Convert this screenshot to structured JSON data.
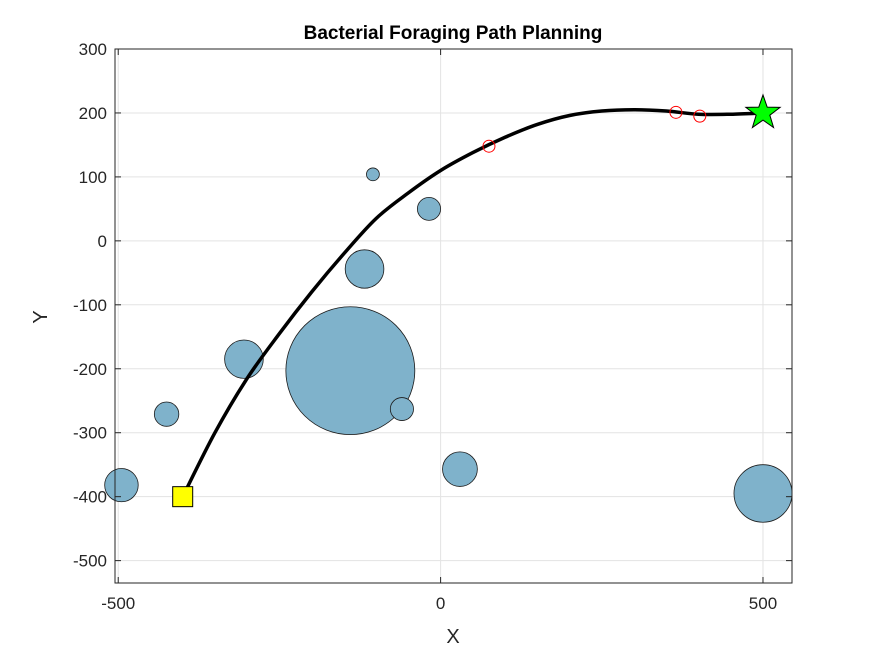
{
  "chart_data": {
    "type": "scatter",
    "title": "Bacterial Foraging Path Planning",
    "xlabel": "X",
    "ylabel": "Y",
    "xlim": [
      -505,
      545
    ],
    "ylim": [
      -535,
      300
    ],
    "xticks": [
      -500,
      0,
      500
    ],
    "yticks": [
      -500,
      -400,
      -300,
      -200,
      -100,
      0,
      100,
      200,
      300
    ],
    "grid": true,
    "colors": {
      "obstacle_fill": "#7fb2cb",
      "obstacle_edge": "#1a1a1a",
      "path": "#000000",
      "waypoint": "#ff0000",
      "start": "#ffff00",
      "goal": "#00ff00",
      "grid": "#e3e3e3"
    },
    "obstacles": [
      {
        "x": -495,
        "y": -382,
        "r": 26
      },
      {
        "x": -425,
        "y": -271,
        "r": 19
      },
      {
        "x": -305,
        "y": -185,
        "r": 30
      },
      {
        "x": -140,
        "y": -203,
        "r": 100
      },
      {
        "x": -60,
        "y": -263,
        "r": 18
      },
      {
        "x": -118,
        "y": -44,
        "r": 30
      },
      {
        "x": -105,
        "y": 104,
        "r": 10
      },
      {
        "x": -18,
        "y": 50,
        "r": 18
      },
      {
        "x": 30,
        "y": -357,
        "r": 27
      },
      {
        "x": 500,
        "y": -395,
        "r": 45
      }
    ],
    "path": [
      {
        "x": -400,
        "y": -400
      },
      {
        "x": -350,
        "y": -300
      },
      {
        "x": -300,
        "y": -215
      },
      {
        "x": -250,
        "y": -145
      },
      {
        "x": -200,
        "y": -80
      },
      {
        "x": -150,
        "y": -20
      },
      {
        "x": -100,
        "y": 35
      },
      {
        "x": -50,
        "y": 75
      },
      {
        "x": 0,
        "y": 110
      },
      {
        "x": 50,
        "y": 138
      },
      {
        "x": 100,
        "y": 162
      },
      {
        "x": 150,
        "y": 182
      },
      {
        "x": 200,
        "y": 196
      },
      {
        "x": 250,
        "y": 203
      },
      {
        "x": 300,
        "y": 205
      },
      {
        "x": 350,
        "y": 203
      },
      {
        "x": 400,
        "y": 198
      },
      {
        "x": 450,
        "y": 198
      },
      {
        "x": 500,
        "y": 200
      }
    ],
    "waypoints": [
      {
        "x": 75,
        "y": 148
      },
      {
        "x": 365,
        "y": 201
      },
      {
        "x": 402,
        "y": 195
      }
    ],
    "start": {
      "x": -400,
      "y": -400,
      "marker": "square"
    },
    "goal": {
      "x": 500,
      "y": 200,
      "marker": "pentagram"
    }
  }
}
